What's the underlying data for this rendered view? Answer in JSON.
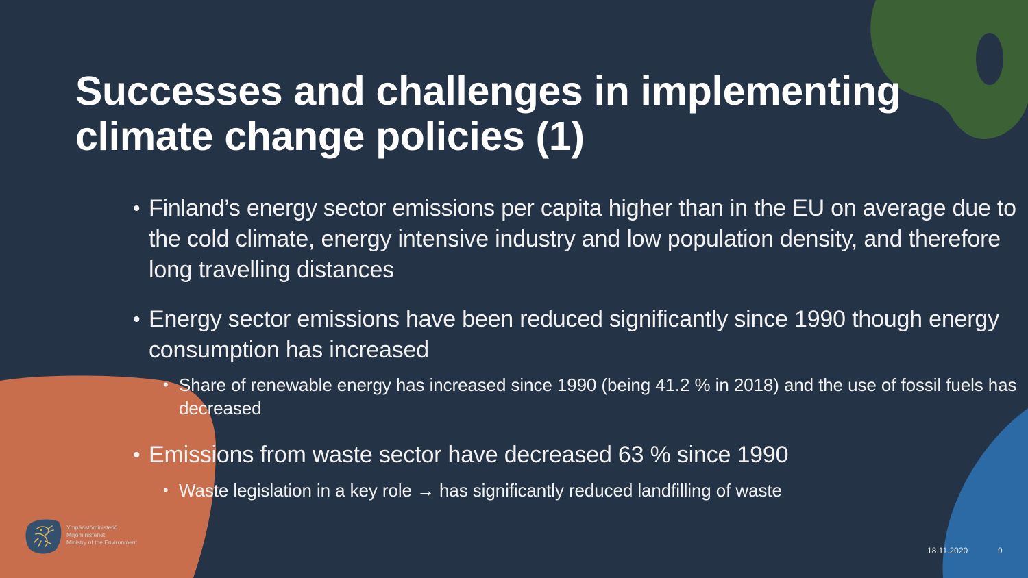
{
  "slide": {
    "title_line1": "Successes and challenges in implementing",
    "title_line2": "climate change policies (1)",
    "bullets": [
      {
        "text": "Finland’s energy sector emissions per capita higher than in the EU on average due to the cold climate, energy intensive industry and low population density, and therefore long travelling distances"
      },
      {
        "text": "Energy sector emissions have been reduced significantly since 1990 though energy consumption has increased",
        "sub": "Share of renewable energy has increased since 1990  (being 41.2 % in 2018) and the use of fossil fuels has decreased"
      },
      {
        "text": "Emissions from waste sector have decreased 63 % since 1990",
        "sub": "Waste legislation in a key role → has significantly reduced landfilling of waste"
      }
    ],
    "bullet_glyph": "•"
  },
  "footer": {
    "org_line1": "Ympäristöministeriö",
    "org_line2": "Miljöministeriet",
    "org_line3": "Ministry of the Environment",
    "date": "18.11.2020",
    "page_number": "9"
  },
  "colors": {
    "background": "#253347",
    "orange_blob": "#c96e4d",
    "green_blob": "#3b6135",
    "blue_blob": "#2c6aa5",
    "logo_badge": "#34506f"
  }
}
